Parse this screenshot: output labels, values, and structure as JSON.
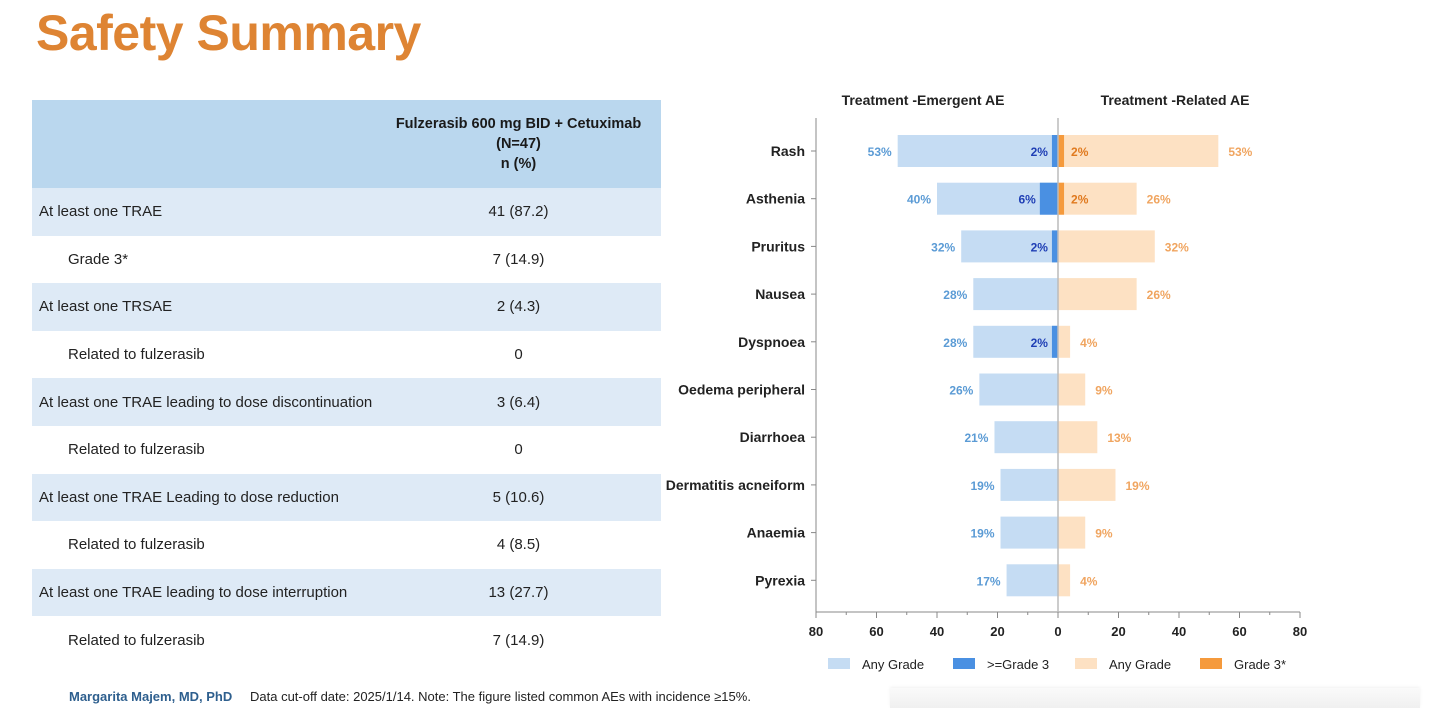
{
  "page": {
    "title": "Safety Summary",
    "footer_author": "Margarita Majem, MD, PhD",
    "footer_note": "Data cut-off date: 2025/1/14. Note: The figure listed common AEs with incidence ≥15%."
  },
  "table": {
    "header": {
      "label": "",
      "line1": "Fulzerasib 600 mg BID + Cetuximab",
      "line2": "(N=47)",
      "line3": "n (%)"
    },
    "rows": [
      {
        "label": "At least one TRAE",
        "value": "41 (87.2)",
        "sub": false
      },
      {
        "label": "Grade 3*",
        "value": "7 (14.9)",
        "sub": true
      },
      {
        "label": "At least one TRSAE",
        "value": "2 (4.3)",
        "sub": false
      },
      {
        "label": "Related to fulzerasib",
        "value": "0",
        "sub": true
      },
      {
        "label": "At least one TRAE leading to dose discontinuation",
        "value": "3 (6.4)",
        "sub": false
      },
      {
        "label": "Related to fulzerasib",
        "value": "0",
        "sub": true
      },
      {
        "label": "At least one TRAE Leading to dose reduction",
        "value": "5 (10.6)",
        "sub": false
      },
      {
        "label": "Related to fulzerasib",
        "value": "4 (8.5)",
        "sub": true
      },
      {
        "label": "At least one TRAE leading to dose interruption",
        "value": "13 (27.7)",
        "sub": false
      },
      {
        "label": "Related to fulzerasib",
        "value": "7 (14.9)",
        "sub": true
      }
    ]
  },
  "chart_data": {
    "type": "bar",
    "orientation": "horizontal-butterfly",
    "left_title": "Treatment -Emergent AE",
    "right_title": "Treatment -Related AE",
    "categories": [
      "Rash",
      "Asthenia",
      "Pruritus",
      "Nausea",
      "Dyspnoea",
      "Oedema peripheral",
      "Diarrhoea",
      "Dermatitis acneiform",
      "Anaemia",
      "Pyrexia"
    ],
    "series": [
      {
        "name": "Any Grade",
        "side": "left",
        "color": "#c5dcf3",
        "label_color": "#5b9bd5",
        "values": [
          53,
          40,
          32,
          28,
          28,
          26,
          21,
          19,
          19,
          17
        ],
        "labels": [
          "53%",
          "40%",
          "32%",
          "28%",
          "28%",
          "26%",
          "21%",
          "19%",
          "19%",
          "17%"
        ]
      },
      {
        "name": ">=Grade 3",
        "side": "left",
        "color": "#4a90e2",
        "label_color": "#1f3fb5",
        "values": [
          2,
          6,
          2,
          0,
          2,
          0,
          0,
          0,
          0,
          0
        ],
        "labels": [
          "2%",
          "6%",
          "2%",
          "",
          "2%",
          "",
          "",
          "",
          "",
          ""
        ]
      },
      {
        "name": "Any Grade",
        "side": "right",
        "color": "#fde1c3",
        "label_color": "#f0a560",
        "values": [
          53,
          26,
          32,
          26,
          4,
          9,
          13,
          19,
          9,
          4
        ],
        "labels": [
          "53%",
          "26%",
          "32%",
          "26%",
          "4%",
          "9%",
          "13%",
          "19%",
          "9%",
          "4%"
        ]
      },
      {
        "name": "Grade 3*",
        "side": "right",
        "color": "#f59a3c",
        "label_color": "#e07a1f",
        "values": [
          2,
          2,
          0,
          0,
          0,
          0,
          0,
          0,
          0,
          0
        ],
        "labels": [
          "2%",
          "2%",
          "",
          "",
          "",
          "",
          "",
          "",
          "",
          ""
        ]
      }
    ],
    "xlim": [
      -80,
      80
    ],
    "ticks": [
      -80,
      -60,
      -40,
      -20,
      0,
      20,
      40,
      60,
      80
    ],
    "tick_labels": [
      "80",
      "60",
      "40",
      "20",
      "0",
      "20",
      "40",
      "60",
      "80"
    ],
    "legend": [
      "Any Grade",
      ">=Grade 3",
      "Any Grade",
      "Grade 3*"
    ],
    "legend_position": "bottom"
  }
}
